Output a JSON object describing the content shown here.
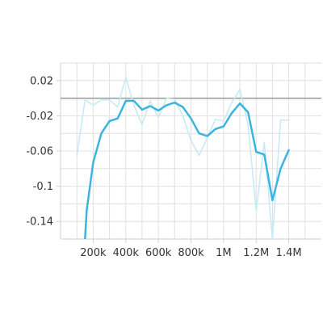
{
  "chart_data": {
    "type": "line",
    "title": "",
    "xlabel": "",
    "ylabel": "",
    "xlim": [
      0,
      1600000
    ],
    "ylim": [
      -0.16,
      0.04
    ],
    "grid": true,
    "legend": "none",
    "reference_line": {
      "y": 0,
      "color": "#9e9e9e"
    },
    "x_ticks": [
      {
        "value": 200000,
        "label": "200k"
      },
      {
        "value": 400000,
        "label": "400k"
      },
      {
        "value": 600000,
        "label": "600k"
      },
      {
        "value": 800000,
        "label": "800k"
      },
      {
        "value": 1000000,
        "label": "1M"
      },
      {
        "value": 1200000,
        "label": "1.2M"
      },
      {
        "value": 1400000,
        "label": "1.4M"
      }
    ],
    "y_ticks": [
      {
        "value": 0.02,
        "label": "0.02"
      },
      {
        "value": -0.02,
        "label": "-0.02"
      },
      {
        "value": -0.06,
        "label": "-0.06"
      },
      {
        "value": -0.1,
        "label": "-0.1"
      },
      {
        "value": -0.14,
        "label": "-0.14"
      }
    ],
    "series": [
      {
        "role": "raw",
        "color": "#c5e9f5",
        "width": 1.5,
        "x": [
          100000,
          150000,
          200000,
          250000,
          300000,
          350000,
          400000,
          450000,
          500000,
          550000,
          600000,
          650000,
          700000,
          750000,
          800000,
          850000,
          900000,
          950000,
          1000000,
          1050000,
          1100000,
          1150000,
          1200000,
          1250000,
          1300000,
          1350000,
          1400000
        ],
        "values": [
          -0.065,
          -0.002,
          -0.008,
          -0.002,
          -0.002,
          -0.01,
          0.024,
          -0.008,
          -0.03,
          -0.003,
          -0.022,
          0.0,
          -0.001,
          -0.02,
          -0.048,
          -0.065,
          -0.045,
          -0.024,
          -0.026,
          -0.005,
          0.01,
          -0.03,
          -0.128,
          -0.05,
          -0.16,
          -0.025,
          -0.025
        ]
      },
      {
        "role": "smoothed",
        "color": "#3cb4e0",
        "width": 2.5,
        "x": [
          150000,
          160000,
          200000,
          250000,
          300000,
          350000,
          400000,
          450000,
          500000,
          550000,
          600000,
          650000,
          700000,
          750000,
          800000,
          850000,
          900000,
          950000,
          1000000,
          1050000,
          1100000,
          1150000,
          1200000,
          1250000,
          1300000,
          1350000,
          1400000
        ],
        "values": [
          -0.16,
          -0.128,
          -0.073,
          -0.04,
          -0.026,
          -0.023,
          -0.003,
          -0.003,
          -0.013,
          -0.009,
          -0.014,
          -0.008,
          -0.005,
          -0.01,
          -0.023,
          -0.04,
          -0.043,
          -0.035,
          -0.032,
          -0.017,
          -0.006,
          -0.016,
          -0.061,
          -0.064,
          -0.116,
          -0.08,
          -0.059
        ]
      }
    ]
  }
}
